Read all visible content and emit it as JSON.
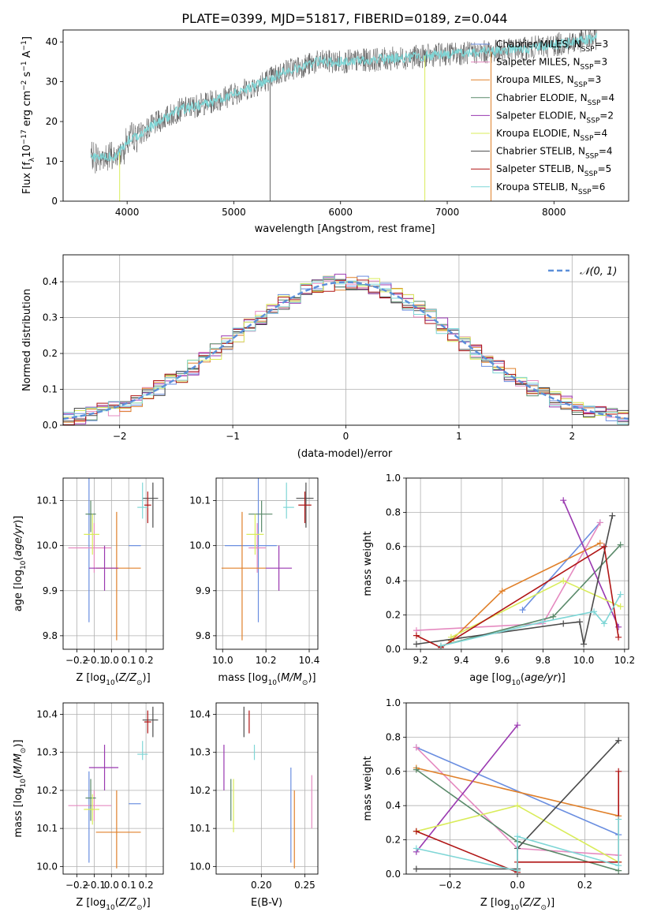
{
  "colors": {
    "chabrier_miles": "#6a8ee0",
    "salpeter_miles": "#e58ac0",
    "kroupa_miles": "#e0802a",
    "chabrier_elodie": "#5a8a6a",
    "salpeter_elodie": "#9a38b0",
    "kroupa_elodie": "#d9ec5a",
    "chabrier_stelib": "#4a4a4a",
    "salpeter_stelib": "#b01515",
    "kroupa_stelib": "#7fd6d6",
    "gaussian": "#5b8fd9"
  },
  "chart_data": [
    {
      "id": "spectrum",
      "type": "line",
      "title": "PLATE=0399, MJD=51817, FIBERID=0189, z=0.044",
      "xlabel": "wavelength [Angstrom, rest frame]",
      "ylabel_main": "Flux [f",
      "ylabel_sub1": "λ",
      "ylabel_mid": "10",
      "ylabel_exp1": "−17",
      "ylabel_rest": " erg cm",
      "ylabel_exp2": "−2",
      "ylabel_s": " s",
      "ylabel_exp3": "−1",
      "ylabel_end": " A",
      "ylabel_exp4": "−1",
      "ylabel_close": "]",
      "xlim": [
        3400,
        8700
      ],
      "ylim": [
        0,
        43
      ],
      "xticks": [
        4000,
        5000,
        6000,
        7000,
        8000
      ],
      "yticks": [
        0,
        10,
        20,
        30,
        40
      ],
      "continuum": [
        [
          3660,
          11
        ],
        [
          3900,
          11
        ],
        [
          4000,
          15
        ],
        [
          4300,
          20
        ],
        [
          4500,
          23
        ],
        [
          4800,
          25
        ],
        [
          5000,
          27
        ],
        [
          5200,
          29
        ],
        [
          5500,
          33
        ],
        [
          5800,
          35
        ],
        [
          6000,
          35
        ],
        [
          6300,
          35.5
        ],
        [
          6600,
          36
        ],
        [
          7000,
          37
        ],
        [
          7400,
          37.5
        ],
        [
          7800,
          38.5
        ],
        [
          8200,
          40
        ],
        [
          8400,
          41
        ]
      ],
      "series_labels": [
        {
          "name": "Chabrier MILES",
          "nssp": "3"
        },
        {
          "name": "Salpeter MILES",
          "nssp": "3"
        },
        {
          "name": "Kroupa MILES",
          "nssp": "3"
        },
        {
          "name": "Chabrier ELODIE",
          "nssp": "4"
        },
        {
          "name": "Salpeter ELODIE",
          "nssp": "2"
        },
        {
          "name": "Kroupa ELODIE",
          "nssp": "4"
        },
        {
          "name": "Chabrier STELIB",
          "nssp": "4"
        },
        {
          "name": "Salpeter STELIB",
          "nssp": "5"
        },
        {
          "name": "Kroupa STELIB",
          "nssp": "6"
        }
      ],
      "legend_n_label": "N",
      "legend_n_sub": "SSP"
    },
    {
      "id": "residuals",
      "type": "bar",
      "xlabel": "(data-model)/error",
      "ylabel": "Normed distribution",
      "xlim": [
        -2.5,
        2.5
      ],
      "ylim": [
        0,
        0.475
      ],
      "xticks": [
        -2,
        -1,
        0,
        1,
        2
      ],
      "yticks": [
        0.0,
        0.1,
        0.2,
        0.3,
        0.4
      ],
      "bin_width": 0.1,
      "legend": "𝒩(0, 1)",
      "note": "step histograms for each of the 9 fits, roughly following a standard normal"
    },
    {
      "id": "age_vs_Z",
      "type": "scatter",
      "xlabel": "Z [log",
      "xlabel_sub": "10",
      "xlabel_rest": "(Z/Z",
      "xlabel_sun": "⊙",
      "xlabel_end": ")]",
      "ylabel": "age  [log10(age/yr)]",
      "xlim": [
        -0.28,
        0.3
      ],
      "ylim": [
        9.77,
        10.15
      ],
      "xticks": [
        -0.2,
        -0.1,
        0.0,
        0.1,
        0.2
      ],
      "yticks": [
        9.8,
        9.9,
        10.0,
        10.1
      ]
    },
    {
      "id": "age_vs_mass",
      "type": "scatter",
      "xlabel": "mass [log10(M/M⊙)]",
      "xlim": [
        9.97,
        10.44
      ],
      "ylim": [
        9.77,
        10.15
      ],
      "xticks": [
        10.0,
        10.2,
        10.4
      ],
      "yticks": [
        9.8,
        9.9,
        10.0,
        10.1
      ]
    },
    {
      "id": "mass_weight_vs_age",
      "type": "line",
      "xlabel": "age  [log10(age/yr)]",
      "ylabel": "mass weight",
      "xlim": [
        9.13,
        10.22
      ],
      "ylim": [
        0,
        1.0
      ],
      "xticks": [
        9.2,
        9.4,
        9.6,
        9.8,
        10.0,
        10.2
      ],
      "yticks": [
        0.0,
        0.2,
        0.4,
        0.6,
        0.8,
        1.0
      ]
    },
    {
      "id": "mass_vs_Z",
      "type": "scatter",
      "xlabel": "Z [log10(Z/Z⊙)]",
      "ylabel": "mass [log10(M/M⊙)]",
      "xlim": [
        -0.28,
        0.3
      ],
      "ylim": [
        9.98,
        10.43
      ],
      "xticks": [
        -0.2,
        -0.1,
        0.0,
        0.1,
        0.2
      ],
      "yticks": [
        10.0,
        10.1,
        10.2,
        10.3,
        10.4
      ]
    },
    {
      "id": "mass_vs_ebv",
      "type": "scatter",
      "xlabel": "E(B-V)",
      "xlim": [
        0.148,
        0.265
      ],
      "ylim": [
        9.98,
        10.43
      ],
      "xticks": [
        0.2,
        0.25
      ],
      "yticks": [
        10.0,
        10.1,
        10.2,
        10.3,
        10.4
      ]
    },
    {
      "id": "mass_weight_vs_Z",
      "type": "line",
      "xlabel": "Z [log10(Z/Z⊙)]",
      "ylabel": "mass weight",
      "xlim": [
        -0.33,
        0.33
      ],
      "ylim": [
        0,
        1.0
      ],
      "xticks": [
        -0.2,
        0.0,
        0.2
      ],
      "yticks": [
        0.0,
        0.2,
        0.4,
        0.6,
        0.8,
        1.0
      ]
    }
  ],
  "fit_points": [
    {
      "key": "chabrier_miles",
      "Z": [
        -0.13,
        0.17,
        0.1
      ],
      "age": [
        10.0,
        9.83,
        10.17
      ],
      "mass": [
        10.165,
        10.01,
        10.25
      ],
      "mass2": [
        10.0,
        10.09,
        10.26
      ],
      "ebv": 0.234,
      "ebvm": [
        10.01,
        10.26
      ]
    },
    {
      "key": "salpeter_miles",
      "Z": [
        -0.1,
        -0.25,
        0.0
      ],
      "age": [
        9.995,
        9.94,
        10.05
      ],
      "mass": [
        10.16,
        10.12,
        10.2
      ],
      "mass2": [
        10.08,
        10.12,
        10.18
      ],
      "ebv": 0.258,
      "ebvm": [
        10.1,
        10.24
      ]
    },
    {
      "key": "kroupa_miles",
      "Z": [
        0.03,
        -0.09,
        0.17
      ],
      "age": [
        9.95,
        9.79,
        10.075
      ],
      "mass": [
        10.09,
        9.995,
        10.2
      ],
      "mass2": [
        9.97,
        10.08,
        10.2
      ],
      "ebv": 0.238,
      "ebvm": [
        9.995,
        10.2
      ]
    },
    {
      "key": "chabrier_elodie",
      "Z": [
        -0.12,
        -0.15,
        -0.09
      ],
      "age": [
        10.07,
        10.03,
        10.1
      ],
      "mass": [
        10.18,
        10.12,
        10.23
      ],
      "mass2": [
        10.07,
        10.12,
        10.23
      ],
      "ebv": 0.165,
      "ebvm": [
        10.12,
        10.23
      ]
    },
    {
      "key": "salpeter_elodie",
      "Z": [
        -0.04,
        -0.13,
        0.04
      ],
      "age": [
        9.95,
        9.9,
        10.0
      ],
      "mass": [
        10.26,
        10.2,
        10.32
      ],
      "mass2": [
        10.26,
        10.2,
        10.32
      ],
      "ebv": 0.157,
      "ebvm": [
        10.2,
        10.32
      ]
    },
    {
      "key": "kroupa_elodie",
      "Z": [
        -0.11,
        -0.16,
        -0.07
      ],
      "age": [
        10.025,
        9.98,
        10.07
      ],
      "mass": [
        10.15,
        10.11,
        10.19
      ],
      "mass2": [
        10.15,
        10.11,
        10.19
      ],
      "ebv": 0.168,
      "ebvm": [
        10.09,
        10.23
      ]
    },
    {
      "key": "chabrier_stelib",
      "Z": [
        0.24,
        0.18,
        0.27
      ],
      "age": [
        10.105,
        10.04,
        10.14
      ],
      "mass": [
        10.385,
        10.34,
        10.42
      ],
      "mass2": [
        10.385,
        10.34,
        10.42
      ],
      "ebv": 0.18,
      "ebvm": [
        10.34,
        10.42
      ]
    },
    {
      "key": "salpeter_stelib",
      "Z": [
        0.21,
        0.19,
        0.23
      ],
      "age": [
        10.09,
        10.05,
        10.12
      ],
      "mass": [
        10.38,
        10.35,
        10.41
      ],
      "mass2": [
        10.38,
        10.35,
        10.41
      ],
      "ebv": 0.186,
      "ebvm": [
        10.35,
        10.41
      ]
    },
    {
      "key": "kroupa_stelib",
      "Z": [
        0.18,
        0.15,
        0.21
      ],
      "age": [
        10.085,
        10.06,
        10.14
      ],
      "mass": [
        10.295,
        10.28,
        10.33
      ],
      "mass2": [
        10.295,
        10.28,
        10.33
      ],
      "ebv": 0.192,
      "ebvm": [
        10.28,
        10.32
      ]
    }
  ],
  "weight_vs_age": [
    {
      "key": "chabrier_miles",
      "pts": [
        [
          9.7,
          0.23
        ],
        [
          10.08,
          0.74
        ]
      ]
    },
    {
      "key": "salpeter_miles",
      "pts": [
        [
          9.18,
          0.11
        ],
        [
          9.8,
          0.15
        ],
        [
          10.08,
          0.74
        ]
      ]
    },
    {
      "key": "kroupa_miles",
      "pts": [
        [
          9.35,
          0.05
        ],
        [
          9.6,
          0.34
        ],
        [
          10.08,
          0.62
        ]
      ]
    },
    {
      "key": "chabrier_elodie",
      "pts": [
        [
          9.3,
          0.02
        ],
        [
          9.85,
          0.19
        ],
        [
          10.18,
          0.61
        ]
      ]
    },
    {
      "key": "salpeter_elodie",
      "pts": [
        [
          9.9,
          0.87
        ],
        [
          10.17,
          0.13
        ]
      ]
    },
    {
      "key": "kroupa_elodie",
      "pts": [
        [
          9.35,
          0.07
        ],
        [
          9.9,
          0.4
        ],
        [
          10.18,
          0.25
        ]
      ]
    },
    {
      "key": "chabrier_stelib",
      "pts": [
        [
          9.18,
          0.03
        ],
        [
          9.9,
          0.15
        ],
        [
          9.98,
          0.16
        ],
        [
          10.0,
          0.03
        ],
        [
          10.14,
          0.78
        ]
      ]
    },
    {
      "key": "salpeter_stelib",
      "pts": [
        [
          9.18,
          0.08
        ],
        [
          9.3,
          0.01
        ],
        [
          10.1,
          0.6
        ],
        [
          10.17,
          0.07
        ]
      ]
    },
    {
      "key": "kroupa_stelib",
      "pts": [
        [
          9.3,
          0.02
        ],
        [
          9.8,
          0.16
        ],
        [
          10.05,
          0.22
        ],
        [
          10.1,
          0.15
        ],
        [
          10.18,
          0.32
        ]
      ]
    }
  ],
  "weight_vs_Z": [
    {
      "key": "chabrier_miles",
      "pts": [
        [
          -0.3,
          0.74
        ],
        [
          0.3,
          0.23
        ]
      ]
    },
    {
      "key": "salpeter_miles",
      "pts": [
        [
          -0.3,
          0.74
        ],
        [
          0.0,
          0.15
        ],
        [
          0.3,
          0.11
        ]
      ]
    },
    {
      "key": "kroupa_miles",
      "pts": [
        [
          -0.3,
          0.62
        ],
        [
          0.3,
          0.34
        ]
      ]
    },
    {
      "key": "chabrier_elodie",
      "pts": [
        [
          -0.3,
          0.61
        ],
        [
          0.0,
          0.19
        ],
        [
          0.3,
          0.02
        ]
      ]
    },
    {
      "key": "salpeter_elodie",
      "pts": [
        [
          -0.3,
          0.13
        ],
        [
          0.0,
          0.87
        ]
      ]
    },
    {
      "key": "kroupa_elodie",
      "pts": [
        [
          -0.3,
          0.25
        ],
        [
          0.0,
          0.4
        ],
        [
          0.3,
          0.07
        ]
      ]
    },
    {
      "key": "chabrier_stelib",
      "pts": [
        [
          -0.3,
          0.03
        ],
        [
          0.0,
          0.03
        ],
        [
          0.0,
          0.15
        ],
        [
          0.3,
          0.78
        ]
      ]
    },
    {
      "key": "salpeter_stelib",
      "pts": [
        [
          -0.3,
          0.25
        ],
        [
          0.0,
          0.01
        ],
        [
          0.0,
          0.07
        ],
        [
          0.3,
          0.07
        ],
        [
          0.3,
          0.6
        ]
      ]
    },
    {
      "key": "kroupa_stelib",
      "pts": [
        [
          -0.3,
          0.15
        ],
        [
          0.0,
          0.02
        ],
        [
          0.0,
          0.22
        ],
        [
          0.3,
          0.05
        ],
        [
          0.3,
          0.32
        ]
      ]
    }
  ]
}
